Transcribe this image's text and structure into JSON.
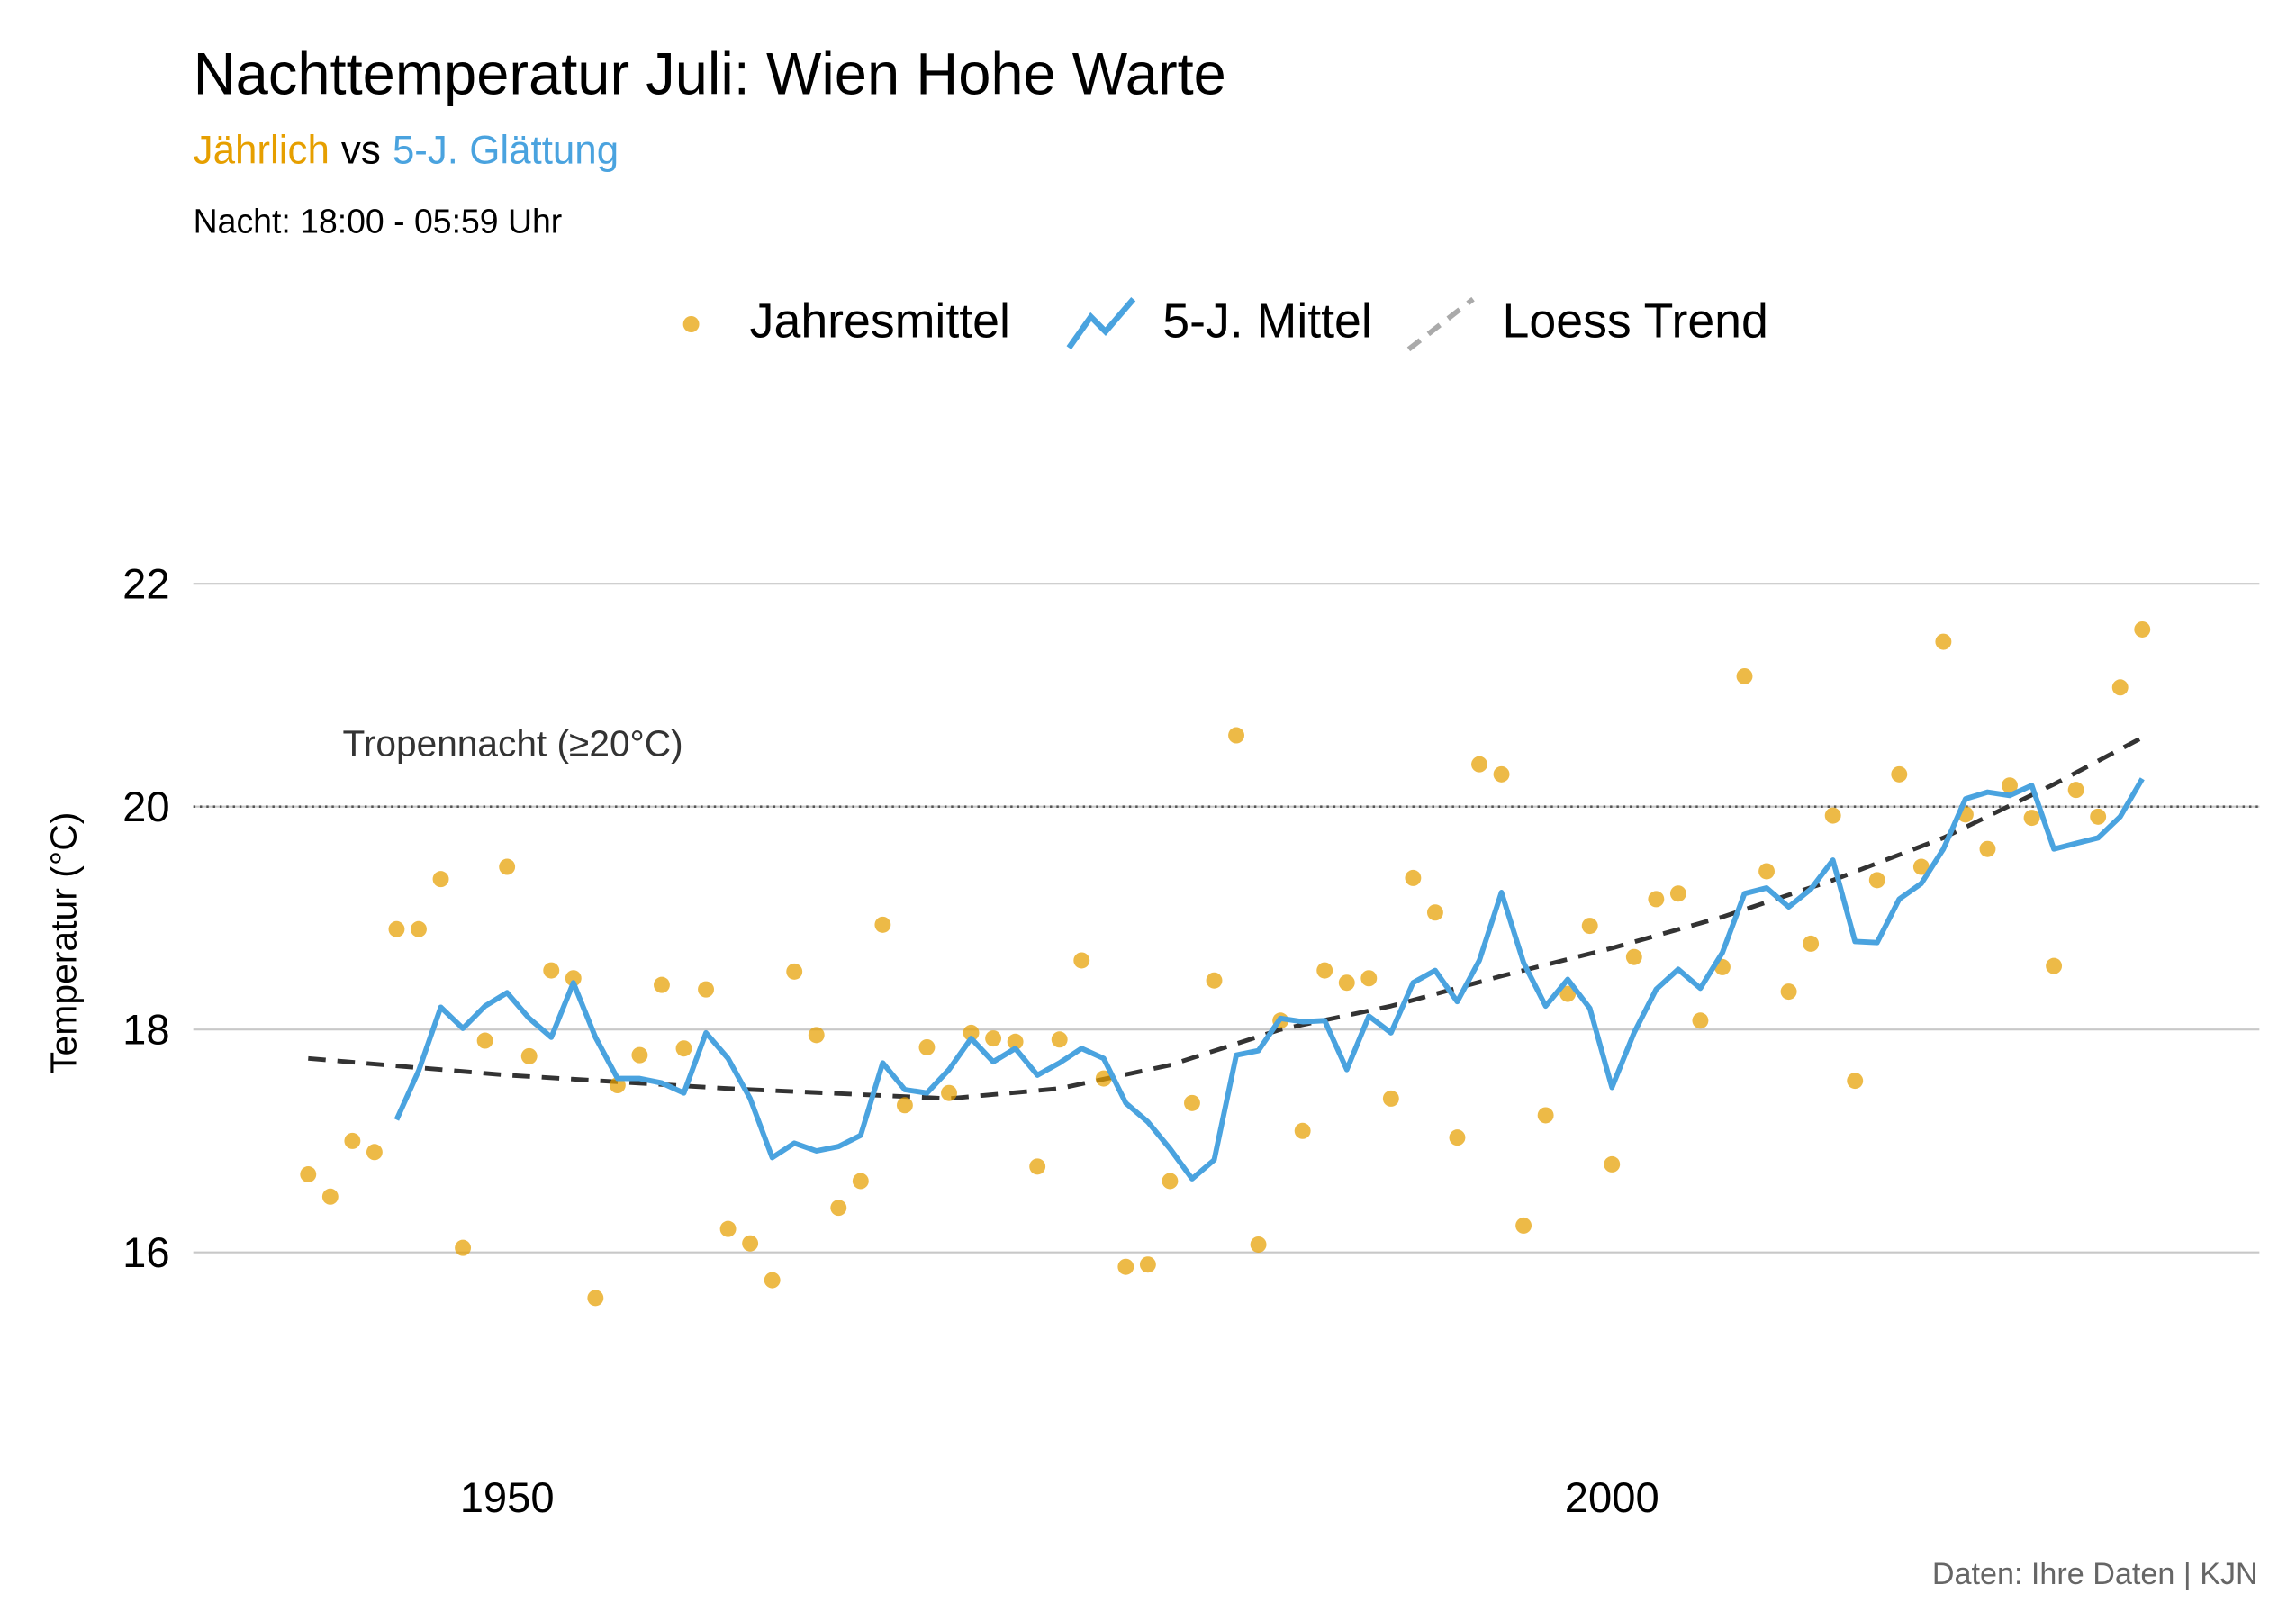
{
  "chart_data": {
    "type": "scatter-line",
    "title": "Nachttemperatur Juli: Wien Hohe Warte",
    "subtitle_parts": [
      {
        "text": "Jährlich",
        "color": "#e69f00"
      },
      {
        "text": "vs",
        "color": "#000000"
      },
      {
        "text": "5-J. Glättung",
        "color": "#4aa3df"
      }
    ],
    "note": "Nacht: 18:00 - 05:59 Uhr",
    "y_label": "Temperatur (°C)",
    "caption": "Daten: Ihre Daten | KJN",
    "annotation": {
      "text": "Tropennacht (≥20°C)",
      "y": 20
    },
    "x": [
      1941,
      1942,
      1943,
      1944,
      1945,
      1946,
      1947,
      1948,
      1949,
      1950,
      1951,
      1952,
      1953,
      1954,
      1955,
      1956,
      1957,
      1958,
      1959,
      1960,
      1961,
      1962,
      1963,
      1964,
      1965,
      1966,
      1967,
      1968,
      1969,
      1970,
      1971,
      1972,
      1973,
      1974,
      1975,
      1976,
      1977,
      1978,
      1979,
      1980,
      1981,
      1982,
      1983,
      1984,
      1985,
      1986,
      1987,
      1988,
      1989,
      1990,
      1991,
      1992,
      1993,
      1994,
      1995,
      1996,
      1997,
      1998,
      1999,
      2000,
      2001,
      2002,
      2003,
      2004,
      2005,
      2006,
      2007,
      2008,
      2009,
      2010,
      2011,
      2012,
      2013,
      2014,
      2015,
      2016,
      2017,
      2018,
      2019,
      2020,
      2021,
      2022,
      2023,
      2024
    ],
    "series": [
      {
        "name": "Jahresmittel",
        "kind": "points",
        "color": "#e69f00",
        "values": [
          16.7,
          16.5,
          17.0,
          16.9,
          18.9,
          18.9,
          19.35,
          16.04,
          17.9,
          19.46,
          17.76,
          18.53,
          18.46,
          15.59,
          17.5,
          17.77,
          18.4,
          17.83,
          18.36,
          16.21,
          16.08,
          15.75,
          18.52,
          17.95,
          16.4,
          16.64,
          18.94,
          17.32,
          17.84,
          17.43,
          17.97,
          17.92,
          17.89,
          16.77,
          17.91,
          18.62,
          17.56,
          15.87,
          15.89,
          16.64,
          17.34,
          18.44,
          20.64,
          16.07,
          18.08,
          17.09,
          18.53,
          18.42,
          18.46,
          17.38,
          19.36,
          19.05,
          17.03,
          20.38,
          20.29,
          16.24,
          17.23,
          18.32,
          18.93,
          16.79,
          18.65,
          19.17,
          19.22,
          18.08,
          18.56,
          21.17,
          19.42,
          18.34,
          18.77,
          19.92,
          17.54,
          19.34,
          20.29,
          19.46,
          21.48,
          19.93,
          19.62,
          20.19,
          19.9,
          18.57,
          20.15,
          19.91,
          21.07,
          21.59
        ]
      },
      {
        "name": "5-J. Mittel",
        "kind": "line",
        "color": "#4aa3df",
        "values": [
          null,
          null,
          null,
          null,
          17.19,
          17.63,
          18.2,
          18.01,
          18.21,
          18.33,
          18.1,
          17.93,
          18.42,
          17.93,
          17.56,
          17.56,
          17.52,
          17.43,
          17.97,
          17.74,
          17.38,
          16.85,
          16.98,
          16.91,
          16.95,
          17.05,
          17.7,
          17.46,
          17.43,
          17.64,
          17.92,
          17.71,
          17.83,
          17.59,
          17.7,
          17.83,
          17.74,
          17.34,
          17.17,
          16.93,
          16.66,
          16.83,
          17.77,
          17.81,
          18.1,
          18.07,
          18.08,
          17.64,
          18.12,
          17.97,
          18.42,
          18.53,
          18.25,
          18.62,
          19.23,
          18.6,
          18.21,
          18.45,
          18.19,
          17.48,
          17.97,
          18.36,
          18.54,
          18.37,
          18.69,
          19.22,
          19.27,
          19.1,
          19.26,
          19.52,
          18.79,
          18.78,
          19.17,
          19.31,
          19.62,
          20.07,
          20.13,
          20.1,
          20.19,
          19.62,
          19.67,
          19.72,
          19.91,
          20.25
        ]
      },
      {
        "name": "Loess Trend",
        "kind": "dashed",
        "color": "#333333",
        "x": [
          1941,
          1950,
          1960,
          1970,
          1975,
          1980,
          1985,
          1990,
          1995,
          2000,
          2005,
          2010,
          2015,
          2020,
          2024
        ],
        "values": [
          17.74,
          17.59,
          17.47,
          17.38,
          17.47,
          17.68,
          18.0,
          18.21,
          18.48,
          18.73,
          19.01,
          19.34,
          19.72,
          20.2,
          20.62
        ]
      }
    ],
    "xlim": [
      1935.8,
      2029.3
    ],
    "xticks": [
      1950,
      2000
    ],
    "ylim": [
      14.5,
      23.3
    ],
    "yticks": [
      16,
      18,
      20,
      22
    ],
    "grid": true,
    "legend": "top"
  }
}
